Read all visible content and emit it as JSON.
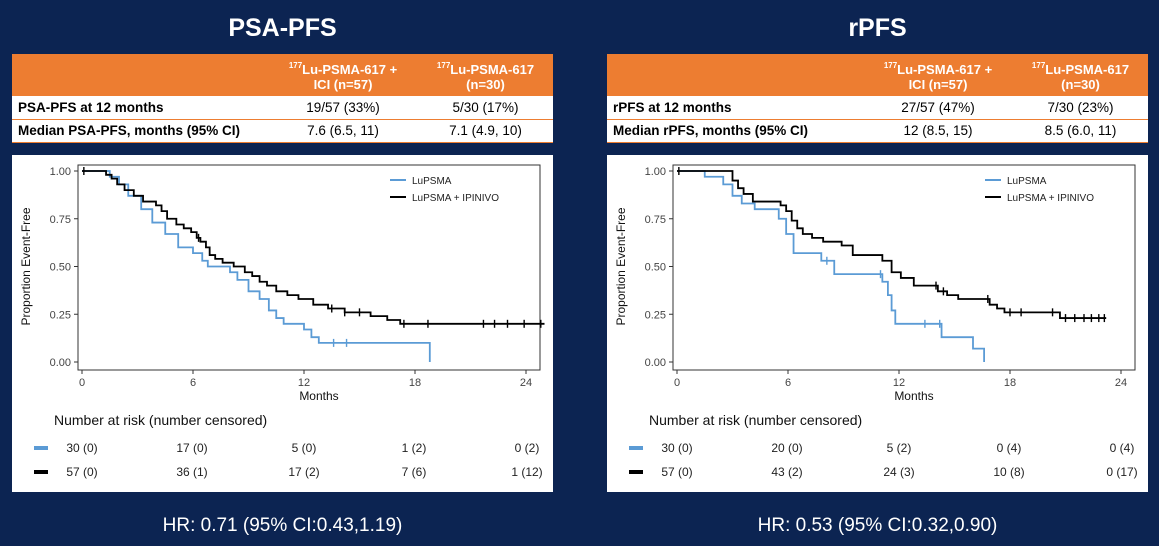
{
  "colors": {
    "background": "#0c2452",
    "header": "#ed7d31",
    "lupsma": "#5b9bd5",
    "combo": "#000000"
  },
  "panels": [
    {
      "title": "PSA-PFS",
      "table": {
        "col1": {
          "sup": "177",
          "main": "Lu-PSMA-617 +",
          "line2": "ICI (n=57)"
        },
        "col2": {
          "sup": "177",
          "main": "Lu-PSMA-617",
          "line2": "(n=30)"
        },
        "rows": [
          {
            "label": "PSA-PFS at 12 months",
            "v1": "19/57 (33%)",
            "v2": "5/30 (17%)"
          },
          {
            "label": "Median PSA-PFS, months (95% CI)",
            "v1": "7.6 (6.5, 11)",
            "v2": "7.1 (4.9, 10)"
          }
        ]
      },
      "risk_title": "Number at risk (number censored)",
      "risk": [
        {
          "series": "LuPSMA",
          "values": [
            "30 (0)",
            "17 (0)",
            "5 (0)",
            "1 (2)",
            "0 (2)"
          ]
        },
        {
          "series": "LuPSMA + IPINIVO",
          "values": [
            "57 (0)",
            "36 (1)",
            "17 (2)",
            "7 (6)",
            "1 (12)"
          ]
        }
      ],
      "hr": "HR: 0.71 (95% CI:0.43,1.19)"
    },
    {
      "title": "rPFS",
      "table": {
        "col1": {
          "sup": "177",
          "main": "Lu-PSMA-617 +",
          "line2": "ICI (n=57)"
        },
        "col2": {
          "sup": "177",
          "main": "Lu-PSMA-617",
          "line2": "(n=30)"
        },
        "rows": [
          {
            "label": "rPFS at 12 months",
            "v1": "27/57 (47%)",
            "v2": "7/30 (23%)"
          },
          {
            "label": "Median rPFS, months (95% CI)",
            "v1": "12 (8.5, 15)",
            "v2": "8.5 (6.0, 11)"
          }
        ]
      },
      "risk_title": "Number at risk (number censored)",
      "risk": [
        {
          "series": "LuPSMA",
          "values": [
            "30 (0)",
            "20 (0)",
            "5 (2)",
            "0 (4)",
            "0 (4)"
          ]
        },
        {
          "series": "LuPSMA + IPINIVO",
          "values": [
            "57 (0)",
            "43 (2)",
            "24 (3)",
            "10 (8)",
            "0 (17)"
          ]
        }
      ],
      "hr": "HR: 0.53 (95% CI:0.32,0.90)"
    }
  ],
  "chart_data": [
    {
      "type": "line",
      "title": "PSA-PFS",
      "xlabel": "Months",
      "ylabel": "Proportion Event-Free",
      "xlim": [
        0,
        25
      ],
      "ylim": [
        0,
        1
      ],
      "xticks": [
        0,
        6,
        12,
        18,
        24
      ],
      "yticks": [
        "0.00",
        "0.25",
        "0.50",
        "0.75",
        "1.00"
      ],
      "legend": [
        "LuPSMA",
        "LuPSMA + IPINIVO"
      ],
      "legend_position": "top-right",
      "series": [
        {
          "name": "LuPSMA",
          "steps": [
            [
              0,
              1
            ],
            [
              1.5,
              0.97
            ],
            [
              2,
              0.93
            ],
            [
              2.5,
              0.87
            ],
            [
              3.2,
              0.8
            ],
            [
              3.8,
              0.73
            ],
            [
              4.5,
              0.67
            ],
            [
              5.2,
              0.6
            ],
            [
              6,
              0.57
            ],
            [
              6.5,
              0.53
            ],
            [
              6.8,
              0.5
            ],
            [
              8,
              0.47
            ],
            [
              8.4,
              0.43
            ],
            [
              9,
              0.37
            ],
            [
              9.6,
              0.33
            ],
            [
              10.1,
              0.27
            ],
            [
              10.5,
              0.23
            ],
            [
              10.9,
              0.2
            ],
            [
              12,
              0.17
            ],
            [
              12.4,
              0.13
            ],
            [
              12.8,
              0.1
            ],
            [
              18.8,
              0.0
            ]
          ],
          "end": 18.8,
          "censor": [
            13.6,
            14.3
          ]
        },
        {
          "name": "LuPSMA + IPINIVO",
          "steps": [
            [
              0,
              1
            ],
            [
              1.3,
              0.98
            ],
            [
              1.6,
              0.96
            ],
            [
              1.9,
              0.93
            ],
            [
              2.3,
              0.9
            ],
            [
              2.8,
              0.87
            ],
            [
              3.3,
              0.84
            ],
            [
              4.0,
              0.82
            ],
            [
              4.3,
              0.79
            ],
            [
              4.6,
              0.75
            ],
            [
              5.1,
              0.72
            ],
            [
              5.5,
              0.7
            ],
            [
              5.9,
              0.68
            ],
            [
              6.2,
              0.65
            ],
            [
              6.4,
              0.63
            ],
            [
              6.7,
              0.6
            ],
            [
              6.9,
              0.56
            ],
            [
              7.2,
              0.54
            ],
            [
              7.6,
              0.52
            ],
            [
              8.2,
              0.5
            ],
            [
              8.8,
              0.47
            ],
            [
              9.2,
              0.45
            ],
            [
              9.6,
              0.42
            ],
            [
              10,
              0.4
            ],
            [
              10.5,
              0.37
            ],
            [
              11.1,
              0.35
            ],
            [
              11.7,
              0.33
            ],
            [
              12.5,
              0.3
            ],
            [
              13.3,
              0.28
            ],
            [
              14.2,
              0.26
            ],
            [
              15.6,
              0.24
            ],
            [
              16.5,
              0.22
            ],
            [
              17.2,
              0.2
            ]
          ],
          "end": 25,
          "censor": [
            0.1,
            6.3,
            13.5,
            14.2,
            15.0,
            17.4,
            18.7,
            21.7,
            22.3,
            23.0,
            23.9,
            24.8
          ]
        }
      ]
    },
    {
      "type": "line",
      "title": "rPFS",
      "xlabel": "Months",
      "ylabel": "Proportion Event-Free",
      "xlim": [
        0,
        24.5
      ],
      "ylim": [
        0,
        1
      ],
      "xticks": [
        0,
        6,
        12,
        18,
        24
      ],
      "yticks": [
        "0.00",
        "0.25",
        "0.50",
        "0.75",
        "1.00"
      ],
      "legend": [
        "LuPSMA",
        "LuPSMA + IPINIVO"
      ],
      "legend_position": "top-right",
      "series": [
        {
          "name": "LuPSMA",
          "steps": [
            [
              0,
              1
            ],
            [
              1.5,
              0.97
            ],
            [
              2.5,
              0.93
            ],
            [
              3.0,
              0.87
            ],
            [
              3.5,
              0.83
            ],
            [
              4.2,
              0.8
            ],
            [
              5.5,
              0.75
            ],
            [
              5.9,
              0.67
            ],
            [
              6.3,
              0.57
            ],
            [
              7.8,
              0.53
            ],
            [
              8.5,
              0.46
            ],
            [
              11.1,
              0.42
            ],
            [
              11.4,
              0.35
            ],
            [
              11.6,
              0.27
            ],
            [
              11.8,
              0.2
            ],
            [
              14.3,
              0.13
            ],
            [
              16.0,
              0.07
            ],
            [
              16.6,
              0.0
            ]
          ],
          "end": 16.6,
          "censor": [
            8.1,
            11.0,
            13.4,
            14.2
          ]
        },
        {
          "name": "LuPSMA + IPINIVO",
          "steps": [
            [
              0,
              1
            ],
            [
              3.0,
              0.95
            ],
            [
              3.3,
              0.91
            ],
            [
              3.6,
              0.88
            ],
            [
              4.1,
              0.84
            ],
            [
              5.6,
              0.82
            ],
            [
              5.9,
              0.79
            ],
            [
              6.2,
              0.74
            ],
            [
              6.5,
              0.7
            ],
            [
              6.8,
              0.67
            ],
            [
              7.3,
              0.65
            ],
            [
              7.9,
              0.63
            ],
            [
              8.9,
              0.61
            ],
            [
              9.5,
              0.56
            ],
            [
              11.1,
              0.53
            ],
            [
              11.6,
              0.47
            ],
            [
              12.1,
              0.44
            ],
            [
              12.8,
              0.4
            ],
            [
              14.1,
              0.37
            ],
            [
              14.6,
              0.35
            ],
            [
              15.2,
              0.33
            ],
            [
              16.9,
              0.3
            ],
            [
              17.3,
              0.28
            ],
            [
              17.7,
              0.26
            ],
            [
              20.7,
              0.23
            ]
          ],
          "end": 23.2,
          "censor": [
            0.1,
            14.0,
            14.4,
            16.8,
            18.0,
            18.6,
            20.3,
            21.0,
            21.5,
            22.0,
            22.4,
            22.8,
            23.1
          ]
        }
      ]
    }
  ]
}
